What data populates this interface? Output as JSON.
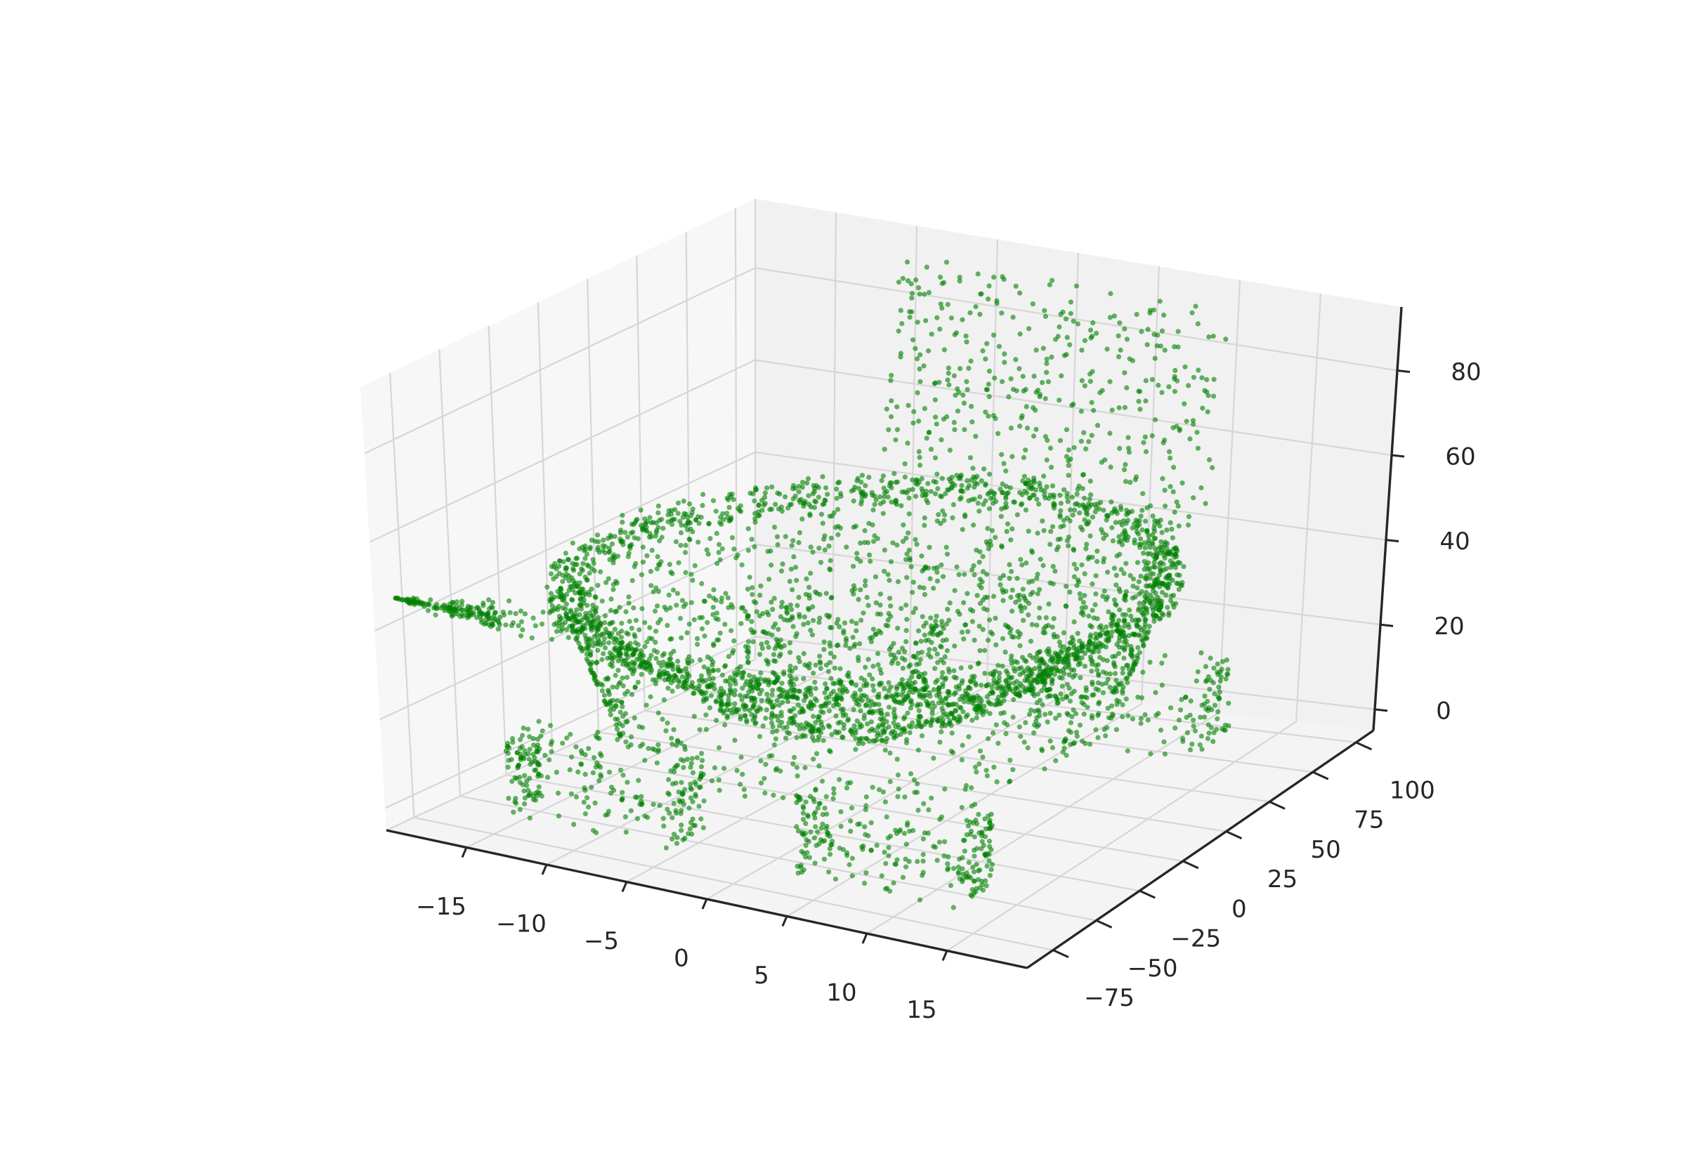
{
  "chart_data": {
    "type": "scatter",
    "projection": "3d",
    "title": "",
    "xlabel": "",
    "ylabel": "",
    "zlabel": "",
    "xlim": [
      -20,
      20
    ],
    "ylim": [
      -90,
      110
    ],
    "zlim": [
      -5,
      95
    ],
    "x_ticks": [
      -15,
      -10,
      -5,
      0,
      5,
      10,
      15
    ],
    "y_ticks": [
      -75,
      -50,
      -25,
      0,
      25,
      50,
      75,
      100
    ],
    "z_ticks": [
      0,
      20,
      40,
      60,
      80
    ],
    "x_tick_labels": [
      "−15",
      "−10",
      "−5",
      "0",
      "5",
      "10",
      "15"
    ],
    "y_tick_labels": [
      "−75",
      "−50",
      "−25",
      "0",
      "25",
      "50",
      "75",
      "100"
    ],
    "z_tick_labels": [
      "0",
      "20",
      "40",
      "60",
      "80"
    ],
    "grid": true,
    "legend": "none",
    "series": [
      {
        "marker_color": "#008000",
        "marker_alpha": 0.6,
        "shape": "point cloud of a bathtub-shaped object with four legs and a tall backrest",
        "components": [
          {
            "part": "rim",
            "kind": "ellipse",
            "center": [
              0,
              0,
              45
            ],
            "radius": [
              16,
              90
            ],
            "count": 1200
          },
          {
            "part": "basin",
            "kind": "bowl",
            "center": [
              0,
              0,
              45
            ],
            "radius": [
              15,
              85
            ],
            "depth": 30,
            "count": 1100
          },
          {
            "part": "outer-wall",
            "kind": "wall",
            "center": [
              0,
              0,
              30
            ],
            "radius": [
              16,
              90
            ],
            "z_range": [
              15,
              45
            ],
            "count": 900
          },
          {
            "part": "backrest",
            "kind": "slab",
            "x_range": [
              -10,
              10
            ],
            "y": 95,
            "z_range": [
              40,
              90
            ],
            "count": 420
          },
          {
            "part": "spout",
            "kind": "cone",
            "apex": [
              -18,
              -95,
              50
            ],
            "base": [
              -10,
              -75,
              45
            ],
            "count": 180
          },
          {
            "part": "leg-front-left",
            "kind": "box",
            "x_range": [
              -14,
              -4
            ],
            "y_range": [
              -75,
              -55
            ],
            "z_range": [
              0,
              18
            ],
            "count": 260
          },
          {
            "part": "leg-front-right",
            "kind": "box",
            "x_range": [
              4,
              14
            ],
            "y_range": [
              -75,
              -55
            ],
            "z_range": [
              0,
              18
            ],
            "count": 260
          },
          {
            "part": "leg-back-left",
            "kind": "box",
            "x_range": [
              -14,
              -4
            ],
            "y_range": [
              55,
              80
            ],
            "z_range": [
              0,
              18
            ],
            "count": 200
          },
          {
            "part": "leg-back-right",
            "kind": "box",
            "x_range": [
              4,
              14
            ],
            "y_range": [
              55,
              80
            ],
            "z_range": [
              0,
              18
            ],
            "count": 200
          }
        ]
      }
    ]
  },
  "style": {
    "pane_left": "#f7f7f7",
    "pane_right": "#f1f1f1",
    "pane_floor": "#f4f4f4",
    "grid_color": "#d6d6d6",
    "axis_color": "#262626",
    "text_color": "#262626",
    "background": "#ffffff"
  }
}
